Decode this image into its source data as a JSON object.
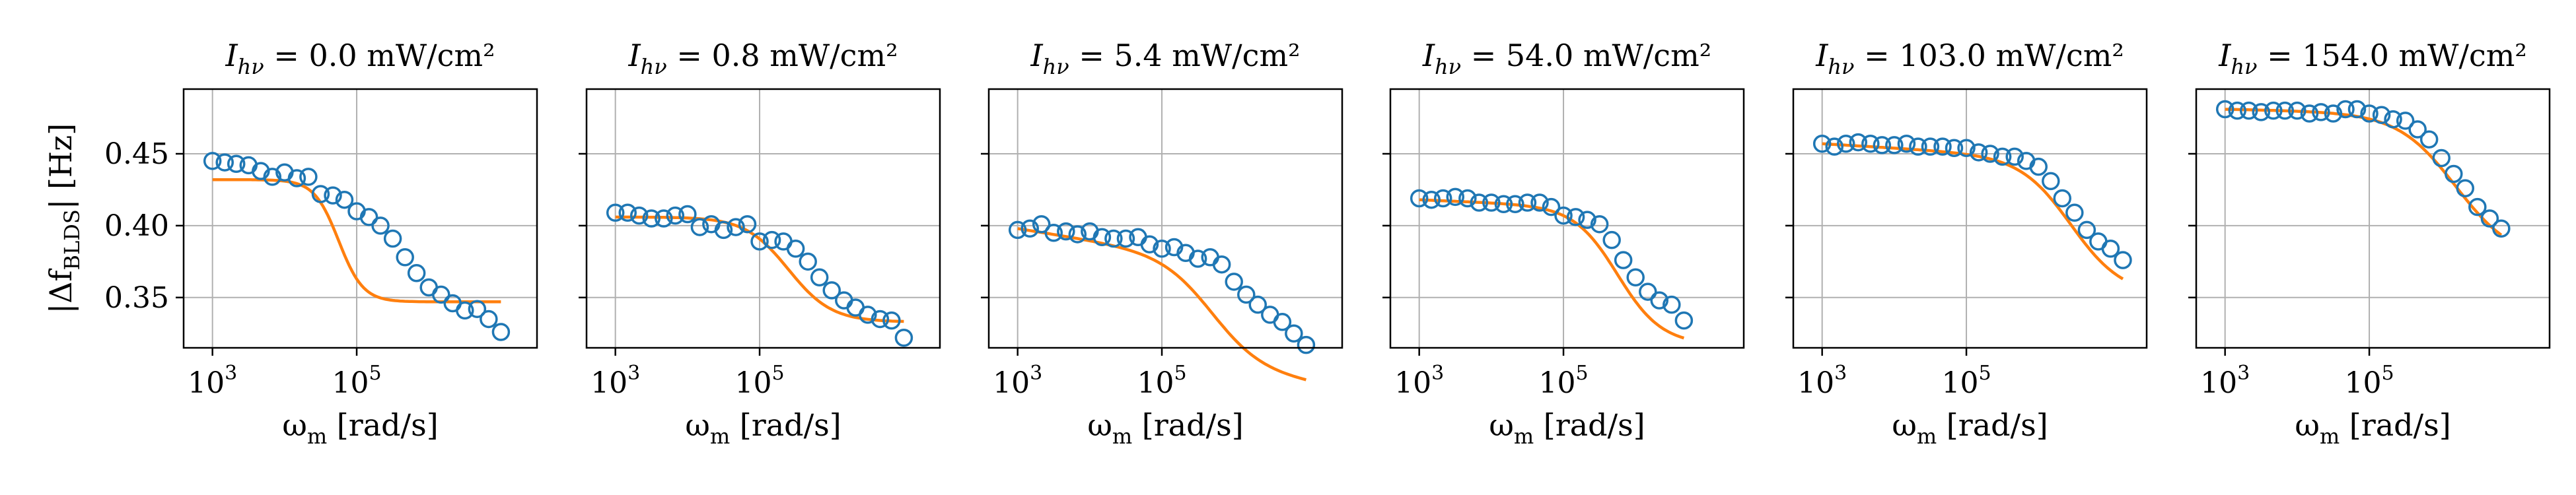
{
  "chart_data": {
    "type": "scatter",
    "shared": {
      "xlabel": "ω_m [rad/s]",
      "ylabel": "|Δf_BLDS| [Hz]",
      "xscale": "log",
      "xlim_log10": [
        2.6,
        7.5
      ],
      "ylim": [
        0.315,
        0.495
      ],
      "x_ticks_log10": [
        3,
        5
      ],
      "x_tick_labels": [
        "10^3",
        "10^5"
      ],
      "y_ticks": [
        0.35,
        0.4,
        0.45
      ],
      "y_tick_labels": [
        "0.35",
        "0.40",
        "0.45"
      ],
      "grid": true,
      "legend": "none",
      "marker_color": "#1f77b4",
      "fit_color": "#ff7f0e"
    },
    "x_log10": [
      3.0,
      3.17,
      3.33,
      3.5,
      3.67,
      3.83,
      4.0,
      4.17,
      4.33,
      4.5,
      4.67,
      4.83,
      5.0,
      5.17,
      5.33,
      5.5,
      5.67,
      5.83,
      6.0,
      6.17,
      6.33,
      6.5,
      6.67,
      6.83,
      7.0
    ],
    "panels": [
      {
        "title": "I_hν = 0.0 mW/cm²",
        "values": [
          0.445,
          0.444,
          0.443,
          0.442,
          0.438,
          0.434,
          0.437,
          0.433,
          0.434,
          0.422,
          0.421,
          0.418,
          0.41,
          0.406,
          0.4,
          0.391,
          0.378,
          0.367,
          0.357,
          0.352,
          0.346,
          0.341,
          0.342,
          0.335,
          0.326
        ],
        "fit": {
          "start": 0.432,
          "end": 0.347,
          "center_log10": 4.75,
          "width": 0.17
        }
      },
      {
        "title": "I_hν = 0.8 mW/cm²",
        "values": [
          0.409,
          0.409,
          0.407,
          0.405,
          0.405,
          0.407,
          0.408,
          0.399,
          0.401,
          0.397,
          0.399,
          0.401,
          0.389,
          0.39,
          0.389,
          0.384,
          0.375,
          0.364,
          0.355,
          0.348,
          0.343,
          0.338,
          0.335,
          0.334,
          0.322
        ],
        "fit": {
          "start": 0.406,
          "end": 0.333,
          "center_log10": 5.4,
          "width": 0.3
        }
      },
      {
        "title": "I_hν = 5.4 mW/cm²",
        "values": [
          0.397,
          0.398,
          0.401,
          0.395,
          0.396,
          0.394,
          0.396,
          0.392,
          0.391,
          0.391,
          0.392,
          0.387,
          0.384,
          0.385,
          0.381,
          0.377,
          0.378,
          0.373,
          0.361,
          0.352,
          0.345,
          0.338,
          0.333,
          0.325,
          0.317
        ],
        "fit": {
          "start": 0.398,
          "end": 0.323,
          "center_log10": 5.7,
          "width": 0.35,
          "slope": -0.008
        }
      },
      {
        "title": "I_hν = 54.0 mW/cm²",
        "values": [
          0.419,
          0.418,
          0.419,
          0.42,
          0.419,
          0.416,
          0.416,
          0.415,
          0.415,
          0.416,
          0.416,
          0.413,
          0.407,
          0.406,
          0.404,
          0.401,
          0.39,
          0.376,
          0.364,
          0.354,
          0.348,
          0.345,
          0.334
        ],
        "x_log10": [
          3.0,
          3.17,
          3.33,
          3.5,
          3.67,
          3.83,
          4.0,
          4.17,
          4.33,
          4.5,
          4.67,
          4.83,
          5.0,
          5.17,
          5.33,
          5.5,
          5.67,
          5.83,
          6.0,
          6.17,
          6.33,
          6.5,
          6.67
        ],
        "fit": {
          "start": 0.418,
          "end": 0.325,
          "center_log10": 5.75,
          "width": 0.3,
          "slope": -0.002
        }
      },
      {
        "title": "I_hν = 103.0 mW/cm²",
        "values": [
          0.457,
          0.455,
          0.457,
          0.458,
          0.457,
          0.456,
          0.456,
          0.457,
          0.455,
          0.455,
          0.455,
          0.454,
          0.454,
          0.451,
          0.45,
          0.448,
          0.448,
          0.445,
          0.441,
          0.431,
          0.419,
          0.409,
          0.397,
          0.389,
          0.384,
          0.376
        ],
        "x_log10": [
          3.0,
          3.17,
          3.33,
          3.5,
          3.67,
          3.83,
          4.0,
          4.17,
          4.33,
          4.5,
          4.67,
          4.83,
          5.0,
          5.17,
          5.33,
          5.5,
          5.67,
          5.83,
          6.0,
          6.17,
          6.33,
          6.5,
          6.67,
          6.83,
          7.0,
          7.17
        ],
        "fit": {
          "start": 0.457,
          "end": 0.365,
          "center_log10": 6.45,
          "width": 0.35,
          "slope": -0.003
        }
      },
      {
        "title": "I_hν = 154.0 mW/cm²",
        "values": [
          0.481,
          0.48,
          0.48,
          0.479,
          0.48,
          0.48,
          0.48,
          0.478,
          0.479,
          0.478,
          0.481,
          0.481,
          0.478,
          0.477,
          0.474,
          0.473,
          0.467,
          0.46,
          0.447,
          0.436,
          0.426,
          0.413,
          0.405,
          0.398
        ],
        "x_log10": [
          3.0,
          3.17,
          3.33,
          3.5,
          3.67,
          3.83,
          4.0,
          4.17,
          4.33,
          4.5,
          4.67,
          4.83,
          5.0,
          5.17,
          5.33,
          5.5,
          5.67,
          5.83,
          6.0,
          6.17,
          6.33,
          6.5,
          6.67,
          6.83
        ],
        "fit": {
          "start": 0.481,
          "end": 0.38,
          "center_log10": 6.2,
          "width": 0.4,
          "slope": -0.001
        }
      }
    ]
  }
}
